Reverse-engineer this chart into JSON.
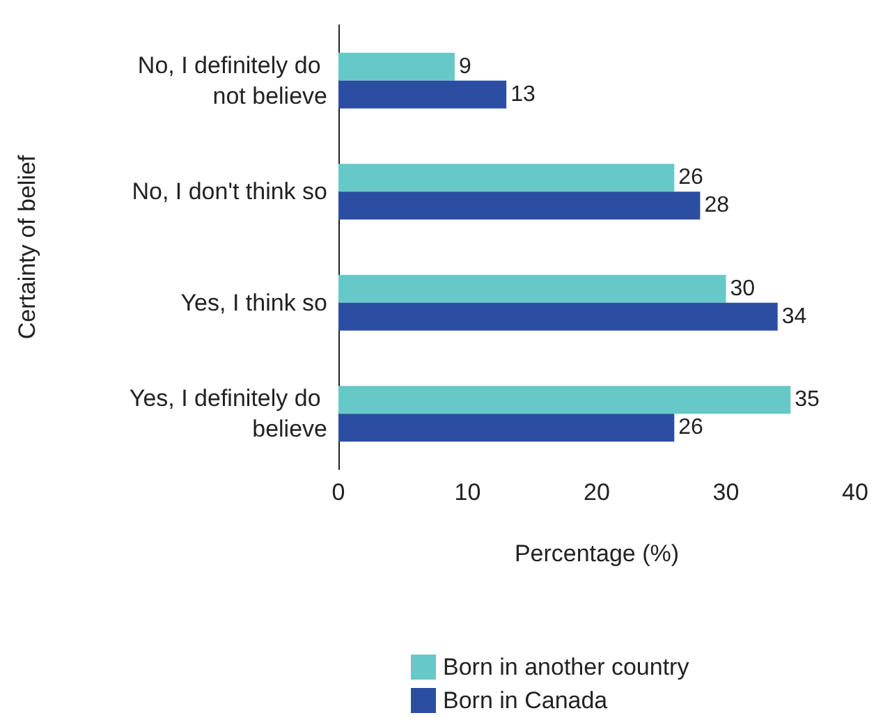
{
  "chart_data": {
    "type": "bar",
    "orientation": "horizontal",
    "ylabel": "Certainty of belief",
    "xlabel": "Percentage (%)",
    "categories": [
      "No, I definitely do not believe",
      "No, I don't think so",
      "Yes, I think so",
      "Yes, I definitely do believe"
    ],
    "series": [
      {
        "name": "Born in another country",
        "color": "#66c9c8",
        "values": [
          9,
          26,
          30,
          35
        ]
      },
      {
        "name": "Born in Canada",
        "color": "#2b4ea2",
        "values": [
          13,
          28,
          34,
          26
        ]
      }
    ],
    "xlim": [
      0,
      40
    ],
    "xticks": [
      0,
      10,
      20,
      30,
      40
    ],
    "grid": false,
    "legend": "bottom",
    "data_labels": true
  }
}
